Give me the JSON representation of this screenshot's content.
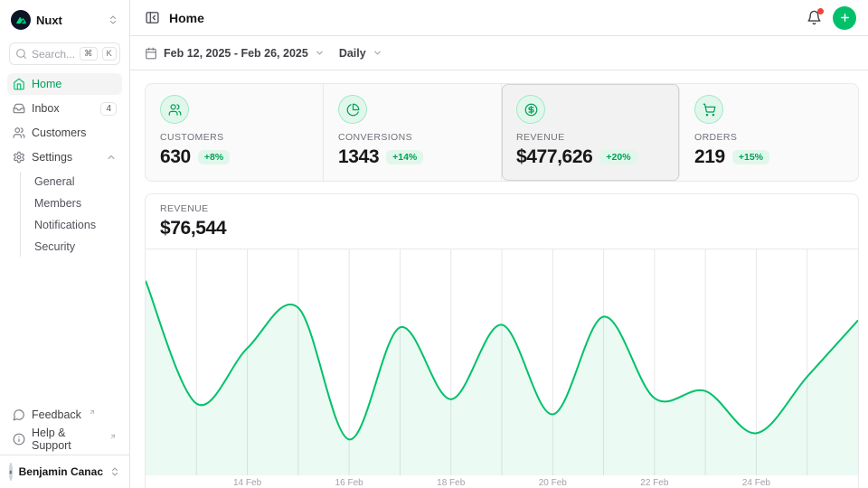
{
  "colors": {
    "accent": "#00c16a",
    "accent_text": "#00a155",
    "notification_dot": "#f04438"
  },
  "sidebar": {
    "workspace": {
      "name": "Nuxt"
    },
    "search": {
      "placeholder": "Search...",
      "kbd": [
        "⌘",
        "K"
      ]
    },
    "nav": [
      {
        "label": "Home",
        "active": true
      },
      {
        "label": "Inbox",
        "badge": "4"
      },
      {
        "label": "Customers"
      },
      {
        "label": "Settings",
        "expanded": true,
        "children": [
          "General",
          "Members",
          "Notifications",
          "Security"
        ]
      }
    ],
    "footer_nav": [
      {
        "label": "Feedback",
        "external": true
      },
      {
        "label": "Help & Support",
        "external": true
      }
    ],
    "user": {
      "name": "Benjamin Canac"
    }
  },
  "header": {
    "title": "Home"
  },
  "toolbar": {
    "date_range": "Feb 12, 2025 - Feb 26, 2025",
    "granularity": "Daily"
  },
  "stats": [
    {
      "label": "CUSTOMERS",
      "value": "630",
      "delta": "+8%",
      "icon": "users-icon",
      "selected": false
    },
    {
      "label": "CONVERSIONS",
      "value": "1343",
      "delta": "+14%",
      "icon": "pie-chart-icon",
      "selected": false
    },
    {
      "label": "REVENUE",
      "value": "$477,626",
      "delta": "+20%",
      "icon": "circle-dollar-icon",
      "selected": true
    },
    {
      "label": "ORDERS",
      "value": "219",
      "delta": "+15%",
      "icon": "shopping-cart-icon",
      "selected": false
    }
  ],
  "chart": {
    "label": "REVENUE",
    "value": "$76,544"
  },
  "chart_data": {
    "type": "area",
    "title": "Revenue (Feb 12, 2025 - Feb 26, 2025, daily)",
    "x": [
      "12 Feb",
      "13 Feb",
      "14 Feb",
      "15 Feb",
      "16 Feb",
      "17 Feb",
      "18 Feb",
      "19 Feb",
      "20 Feb",
      "21 Feb",
      "22 Feb",
      "23 Feb",
      "24 Feb",
      "25 Feb",
      "26 Feb"
    ],
    "values": [
      96000,
      35400,
      62800,
      82700,
      17700,
      73000,
      37600,
      74300,
      30100,
      78300,
      38100,
      41600,
      20800,
      48700,
      76544
    ],
    "x_tick_labels": [
      "14 Feb",
      "16 Feb",
      "18 Feb",
      "20 Feb",
      "22 Feb",
      "24 Feb"
    ],
    "ylim": [
      0,
      111500
    ],
    "grid": "vertical-only",
    "legend": "none",
    "line_color": "#00c16a",
    "area_opacity": 0.08
  }
}
